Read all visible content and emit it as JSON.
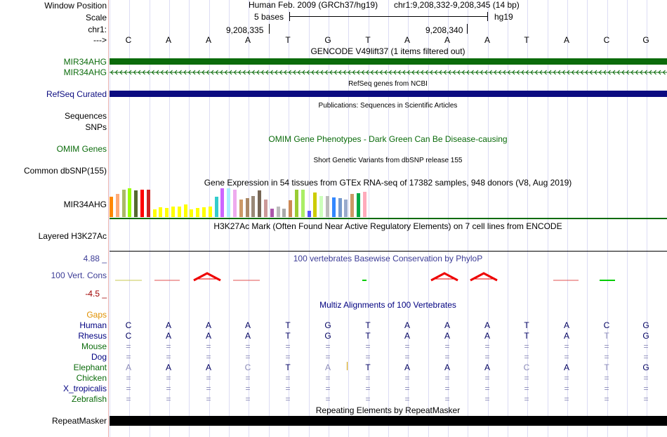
{
  "header": {
    "window_position_label": "Window Position",
    "scale_label": "Scale",
    "chr_label": "chr1:",
    "arrow_label": "--->",
    "assembly": "Human Feb. 2009 (GRCh37/hg19)",
    "position": "chr1:9,208,332-9,208,345 (14 bp)",
    "scale_text": "5 bases",
    "scale_db": "hg19",
    "coord1": "9,208,335",
    "coord2": "9,208,340"
  },
  "bases": [
    "C",
    "A",
    "A",
    "A",
    "T",
    "G",
    "T",
    "A",
    "A",
    "A",
    "T",
    "A",
    "C",
    "G"
  ],
  "tracks": {
    "gencode": {
      "title": "GENCODE V49lift37 (1 items filtered out)",
      "label1": "MIR34AHG",
      "label2": "MIR34AHG",
      "color": "#0b6b0b"
    },
    "refseq": {
      "title": "RefSeq genes from NCBI",
      "label": "RefSeq Curated",
      "color": "#0b0b80"
    },
    "publications": {
      "title": "Publications: Sequences in Scientific Articles",
      "label1": "Sequences",
      "label2": "SNPs"
    },
    "omim": {
      "title": "OMIM Gene Phenotypes - Dark Green Can Be Disease-causing",
      "label": "OMIM Genes",
      "color": "#0b6b0b"
    },
    "dbsnp": {
      "title": "Short Genetic Variants from dbSNP release 155",
      "label": "Common dbSNP(155)"
    },
    "gtex": {
      "title": "Gene Expression in 54 tissues from GTEx RNA-seq of 17382 samples, 948 donors (V8, Aug 2019)",
      "label": "MIR34AHG"
    },
    "h3k27ac": {
      "title": "H3K27Ac Mark (Often Found Near Active Regulatory Elements) on 7 cell lines from ENCODE",
      "label": "Layered H3K27Ac"
    },
    "phylop": {
      "title": "100 vertebrates Basewise Conservation by PhyloP",
      "label": "100 Vert. Cons",
      "max": "4.88 _",
      "min": "-4.5 _",
      "color": "#3c3c96",
      "min_color": "#a00000"
    },
    "multiz": {
      "title": "Multiz Alignments of 100 Vertebrates",
      "gaps_label": "Gaps",
      "title_color": "#000080"
    },
    "repeatmasker": {
      "title": "Repeating Elements by RepeatMasker",
      "label": "RepeatMasker"
    }
  },
  "gtex_colors": [
    "#ff8800",
    "#ffaa77",
    "#aabb66",
    "#99ff00",
    "#556b2f",
    "#ff0000",
    "#cc2222",
    "#ffff00",
    "#ffff00",
    "#ffff00",
    "#ffff00",
    "#ffff00",
    "#ffff00",
    "#ffff00",
    "#ffff00",
    "#ffff00",
    "#ffff00",
    "#33cccc",
    "#cc66ff",
    "#aaeeff",
    "#eeaaee",
    "#cc9966",
    "#aa8866",
    "#998877",
    "#776655",
    "#cc9999",
    "#aa55aa",
    "#bbbbbb",
    "#aaaaaa",
    "#cc8855",
    "#99cc33",
    "#aaee66",
    "#5555ff",
    "#cccc00",
    "#ccffbb",
    "#bbbbbb",
    "#3388ff",
    "#7799cc",
    "#99aacc",
    "#cc9966",
    "#00aa44",
    "#ffaabb"
  ],
  "gtex_values": [
    0.7,
    0.8,
    0.95,
    1.0,
    0.92,
    0.96,
    0.96,
    0.28,
    0.35,
    0.32,
    0.36,
    0.36,
    0.44,
    0.28,
    0.32,
    0.34,
    0.36,
    0.7,
    1.0,
    1.0,
    0.95,
    0.62,
    0.65,
    0.72,
    0.92,
    0.62,
    0.3,
    0.36,
    0.3,
    0.58,
    0.95,
    0.95,
    0.22,
    0.86,
    0.74,
    0.74,
    0.68,
    0.66,
    0.6,
    0.8,
    0.82,
    0.88
  ],
  "multiz": {
    "species": [
      {
        "name": "Human",
        "color": "#000080",
        "seq": [
          "C",
          "A",
          "A",
          "A",
          "T",
          "G",
          "T",
          "A",
          "A",
          "A",
          "T",
          "A",
          "C",
          "G"
        ],
        "dim": []
      },
      {
        "name": "Rhesus",
        "color": "#000080",
        "seq": [
          "C",
          "A",
          "A",
          "A",
          "T",
          "G",
          "T",
          "A",
          "A",
          "A",
          "T",
          "A",
          "T",
          "G"
        ],
        "dim": [
          12
        ]
      },
      {
        "name": "Mouse",
        "color": "#0b6b0b",
        "seq": [
          "=",
          "=",
          "=",
          "=",
          "=",
          "=",
          "=",
          "=",
          "=",
          "=",
          "=",
          "=",
          "=",
          "="
        ],
        "dim": []
      },
      {
        "name": "Dog",
        "color": "#000080",
        "seq": [
          "=",
          "=",
          "=",
          "=",
          "=",
          "=",
          "=",
          "=",
          "=",
          "=",
          "=",
          "=",
          "=",
          "="
        ],
        "dim": []
      },
      {
        "name": "Elephant",
        "color": "#0b6b0b",
        "seq": [
          "A",
          "A",
          "A",
          "C",
          "T",
          "A",
          "T",
          "A",
          "A",
          "A",
          "C",
          "A",
          "T",
          "G"
        ],
        "dim": [
          0,
          3,
          5,
          10,
          12
        ]
      },
      {
        "name": "Chicken",
        "color": "#0b6b0b",
        "seq": [
          "=",
          "=",
          "=",
          "=",
          "=",
          "=",
          "=",
          "=",
          "=",
          "=",
          "=",
          "=",
          "=",
          "="
        ],
        "dim": []
      },
      {
        "name": "X_tropicalis",
        "color": "#000080",
        "seq": [
          "=",
          "=",
          "=",
          "=",
          "=",
          "=",
          "=",
          "=",
          "=",
          "=",
          "=",
          "=",
          "=",
          "="
        ],
        "dim": []
      },
      {
        "name": "Zebrafish",
        "color": "#0b6b0b",
        "seq": [
          "=",
          "=",
          "=",
          "=",
          "=",
          "=",
          "=",
          "=",
          "=",
          "=",
          "=",
          "=",
          "=",
          "="
        ],
        "dim": []
      }
    ]
  }
}
